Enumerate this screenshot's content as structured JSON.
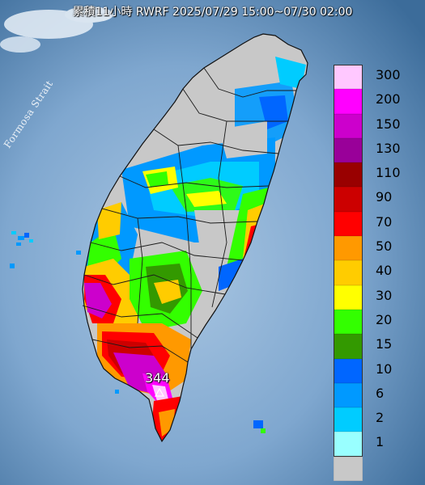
{
  "title": "累積11小時 RWRF 2025/07/29 15:00~07/30 02:00",
  "map_labels": {
    "strait": "Formosa Strait",
    "max_value": "344"
  },
  "legend": [
    {
      "label": "300",
      "color": "#ffc8ff"
    },
    {
      "label": "200",
      "color": "#ff00ff"
    },
    {
      "label": "150",
      "color": "#cc00cc"
    },
    {
      "label": "130",
      "color": "#990099"
    },
    {
      "label": "110",
      "color": "#990000"
    },
    {
      "label": "90",
      "color": "#cc0000"
    },
    {
      "label": "70",
      "color": "#ff0000"
    },
    {
      "label": "50",
      "color": "#ff9900"
    },
    {
      "label": "40",
      "color": "#ffcc00"
    },
    {
      "label": "30",
      "color": "#ffff00"
    },
    {
      "label": "20",
      "color": "#33ff00"
    },
    {
      "label": "15",
      "color": "#339900"
    },
    {
      "label": "10",
      "color": "#0066ff"
    },
    {
      "label": "6",
      "color": "#0099ff"
    },
    {
      "label": "2",
      "color": "#00ccff"
    },
    {
      "label": "1",
      "color": "#99ffff"
    },
    {
      "label": "",
      "color": "#c8c8c8"
    }
  ],
  "colors": {
    "sea_dark": "#3a6a98",
    "sea_light": "#8fb4d8",
    "land": "#c8c8c8"
  }
}
